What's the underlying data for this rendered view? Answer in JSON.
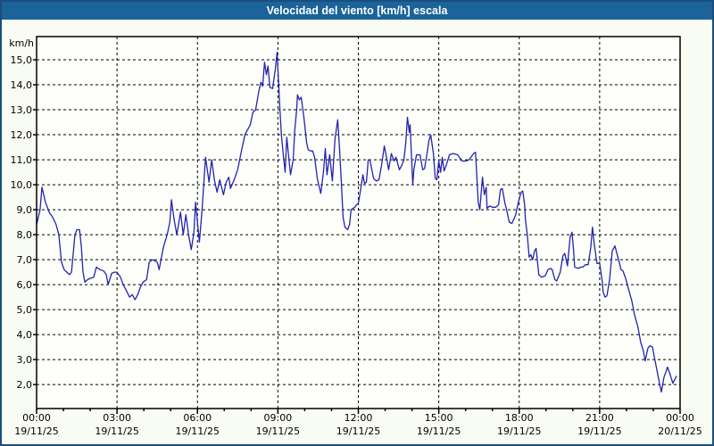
{
  "window": {
    "title": "Velocidad del viento [km/h] escala"
  },
  "colors": {
    "titlebar_bg": "#1B6398",
    "frame_border": "#1A4E7E",
    "page_bg": "#F9FCF3",
    "plot_bg": "#FEFFFA",
    "line": "#2323AF",
    "grid": "#000000",
    "text": "#000000"
  },
  "chart_data": {
    "type": "line",
    "title": "Velocidad del viento [km/h] escala",
    "xlabel": "",
    "ylabel": "km/h",
    "ylim": [
      1.04,
      15.93
    ],
    "xlim_hours": [
      0,
      24
    ],
    "grid": "dashed",
    "legend": "none",
    "yticks": [
      {
        "v": 2,
        "label": "2,0"
      },
      {
        "v": 3,
        "label": "3,0"
      },
      {
        "v": 4,
        "label": "4,0"
      },
      {
        "v": 5,
        "label": "5,0"
      },
      {
        "v": 6,
        "label": "6,0"
      },
      {
        "v": 7,
        "label": "7,0"
      },
      {
        "v": 8,
        "label": "8,0"
      },
      {
        "v": 9,
        "label": "9,0"
      },
      {
        "v": 10,
        "label": "10,0"
      },
      {
        "v": 11,
        "label": "11,0"
      },
      {
        "v": 12,
        "label": "12,0"
      },
      {
        "v": 13,
        "label": "13,0"
      },
      {
        "v": 14,
        "label": "14,0"
      },
      {
        "v": 15,
        "label": "15,0"
      }
    ],
    "xticks": [
      {
        "h": 0,
        "time": "00:00",
        "date": "19/11/25"
      },
      {
        "h": 3,
        "time": "03:00",
        "date": "19/11/25"
      },
      {
        "h": 6,
        "time": "06:00",
        "date": "19/11/25"
      },
      {
        "h": 9,
        "time": "09:00",
        "date": "19/11/25"
      },
      {
        "h": 12,
        "time": "12:00",
        "date": "19/11/25"
      },
      {
        "h": 15,
        "time": "15:00",
        "date": "19/11/25"
      },
      {
        "h": 18,
        "time": "18:00",
        "date": "19/11/25"
      },
      {
        "h": 21,
        "time": "21:00",
        "date": "19/11/25"
      },
      {
        "h": 24,
        "time": "00:00",
        "date": "20/11/25"
      }
    ],
    "minor_xtick_every_hours": 1,
    "series": [
      {
        "name": "Velocidad del viento",
        "color": "#2323AF",
        "points": [
          [
            0.0,
            8.4
          ],
          [
            0.13,
            9.0
          ],
          [
            0.2,
            9.9
          ],
          [
            0.33,
            9.3
          ],
          [
            0.47,
            8.9
          ],
          [
            0.6,
            8.7
          ],
          [
            0.73,
            8.4
          ],
          [
            0.83,
            8.0
          ],
          [
            0.93,
            6.9
          ],
          [
            1.03,
            6.6
          ],
          [
            1.13,
            6.5
          ],
          [
            1.23,
            6.4
          ],
          [
            1.3,
            6.5
          ],
          [
            1.37,
            7.3
          ],
          [
            1.43,
            8.0
          ],
          [
            1.5,
            8.2
          ],
          [
            1.6,
            8.2
          ],
          [
            1.67,
            7.5
          ],
          [
            1.73,
            6.5
          ],
          [
            1.8,
            6.1
          ],
          [
            1.9,
            6.2
          ],
          [
            2.0,
            6.25
          ],
          [
            2.13,
            6.3
          ],
          [
            2.23,
            6.7
          ],
          [
            2.37,
            6.6
          ],
          [
            2.5,
            6.55
          ],
          [
            2.6,
            6.4
          ],
          [
            2.67,
            6.0
          ],
          [
            2.8,
            6.45
          ],
          [
            2.9,
            6.5
          ],
          [
            3.0,
            6.5
          ],
          [
            3.13,
            6.3
          ],
          [
            3.23,
            6.0
          ],
          [
            3.33,
            5.8
          ],
          [
            3.47,
            5.5
          ],
          [
            3.57,
            5.6
          ],
          [
            3.67,
            5.4
          ],
          [
            3.77,
            5.6
          ],
          [
            3.87,
            5.9
          ],
          [
            3.97,
            6.1
          ],
          [
            4.1,
            6.2
          ],
          [
            4.2,
            6.9
          ],
          [
            4.33,
            7.0
          ],
          [
            4.5,
            6.9
          ],
          [
            4.57,
            6.6
          ],
          [
            4.73,
            7.5
          ],
          [
            4.87,
            8.0
          ],
          [
            4.97,
            8.5
          ],
          [
            5.03,
            9.4
          ],
          [
            5.13,
            8.6
          ],
          [
            5.23,
            8.0
          ],
          [
            5.37,
            8.9
          ],
          [
            5.47,
            8.0
          ],
          [
            5.57,
            8.8
          ],
          [
            5.67,
            8.0
          ],
          [
            5.77,
            7.4
          ],
          [
            5.87,
            8.1
          ],
          [
            5.93,
            9.3
          ],
          [
            6.07,
            7.7
          ],
          [
            6.17,
            9.0
          ],
          [
            6.3,
            11.1
          ],
          [
            6.43,
            10.1
          ],
          [
            6.53,
            11.0
          ],
          [
            6.63,
            10.2
          ],
          [
            6.73,
            9.7
          ],
          [
            6.83,
            10.2
          ],
          [
            6.97,
            9.6
          ],
          [
            7.07,
            10.1
          ],
          [
            7.17,
            10.3
          ],
          [
            7.23,
            9.85
          ],
          [
            7.37,
            10.2
          ],
          [
            7.5,
            10.6
          ],
          [
            7.63,
            11.3
          ],
          [
            7.77,
            12.0
          ],
          [
            7.97,
            12.4
          ],
          [
            8.07,
            12.9
          ],
          [
            8.17,
            13.0
          ],
          [
            8.3,
            13.8
          ],
          [
            8.37,
            14.1
          ],
          [
            8.43,
            13.95
          ],
          [
            8.5,
            14.9
          ],
          [
            8.57,
            14.4
          ],
          [
            8.63,
            14.75
          ],
          [
            8.7,
            13.9
          ],
          [
            8.8,
            13.85
          ],
          [
            8.9,
            14.6
          ],
          [
            8.97,
            15.3
          ],
          [
            9.07,
            13.1
          ],
          [
            9.13,
            12.0
          ],
          [
            9.2,
            11.2
          ],
          [
            9.27,
            10.5
          ],
          [
            9.33,
            11.9
          ],
          [
            9.47,
            10.4
          ],
          [
            9.57,
            11.0
          ],
          [
            9.63,
            12.2
          ],
          [
            9.7,
            13.0
          ],
          [
            9.73,
            13.6
          ],
          [
            9.8,
            13.4
          ],
          [
            9.87,
            13.5
          ],
          [
            9.97,
            12.7
          ],
          [
            10.07,
            11.7
          ],
          [
            10.13,
            11.4
          ],
          [
            10.23,
            11.35
          ],
          [
            10.3,
            11.35
          ],
          [
            10.37,
            11.1
          ],
          [
            10.47,
            10.25
          ],
          [
            10.6,
            9.65
          ],
          [
            10.7,
            10.5
          ],
          [
            10.77,
            11.45
          ],
          [
            10.83,
            10.4
          ],
          [
            10.93,
            11.2
          ],
          [
            11.03,
            10.15
          ],
          [
            11.13,
            11.85
          ],
          [
            11.23,
            12.6
          ],
          [
            11.3,
            11.4
          ],
          [
            11.37,
            10.0
          ],
          [
            11.43,
            8.7
          ],
          [
            11.5,
            8.3
          ],
          [
            11.6,
            8.2
          ],
          [
            11.67,
            8.4
          ],
          [
            11.73,
            9.0
          ],
          [
            11.87,
            9.1
          ],
          [
            11.93,
            9.2
          ],
          [
            12.0,
            9.25
          ],
          [
            12.1,
            9.9
          ],
          [
            12.17,
            10.4
          ],
          [
            12.23,
            10.05
          ],
          [
            12.3,
            10.1
          ],
          [
            12.37,
            11.0
          ],
          [
            12.43,
            11.0
          ],
          [
            12.57,
            10.25
          ],
          [
            12.67,
            10.15
          ],
          [
            12.77,
            10.2
          ],
          [
            12.87,
            10.8
          ],
          [
            12.97,
            11.55
          ],
          [
            13.07,
            11.0
          ],
          [
            13.13,
            10.6
          ],
          [
            13.23,
            11.25
          ],
          [
            13.33,
            10.95
          ],
          [
            13.4,
            11.1
          ],
          [
            13.53,
            10.6
          ],
          [
            13.63,
            10.8
          ],
          [
            13.7,
            11.0
          ],
          [
            13.77,
            11.7
          ],
          [
            13.83,
            12.7
          ],
          [
            13.9,
            12.1
          ],
          [
            13.93,
            12.4
          ],
          [
            14.0,
            10.7
          ],
          [
            14.03,
            10.0
          ],
          [
            14.07,
            10.6
          ],
          [
            14.17,
            11.2
          ],
          [
            14.3,
            11.2
          ],
          [
            14.4,
            10.6
          ],
          [
            14.47,
            10.65
          ],
          [
            14.57,
            11.3
          ],
          [
            14.63,
            11.75
          ],
          [
            14.7,
            12.0
          ],
          [
            14.8,
            11.25
          ],
          [
            14.87,
            10.25
          ],
          [
            14.93,
            10.2
          ],
          [
            15.0,
            10.95
          ],
          [
            15.07,
            10.5
          ],
          [
            15.13,
            11.1
          ],
          [
            15.2,
            10.55
          ],
          [
            15.3,
            10.85
          ],
          [
            15.4,
            11.2
          ],
          [
            15.53,
            11.25
          ],
          [
            15.7,
            11.2
          ],
          [
            15.8,
            11.05
          ],
          [
            15.87,
            10.95
          ],
          [
            16.0,
            10.95
          ],
          [
            16.13,
            11.0
          ],
          [
            16.23,
            11.15
          ],
          [
            16.3,
            11.25
          ],
          [
            16.37,
            11.3
          ],
          [
            16.4,
            10.7
          ],
          [
            16.47,
            9.3
          ],
          [
            16.53,
            9.0
          ],
          [
            16.63,
            10.3
          ],
          [
            16.7,
            9.6
          ],
          [
            16.77,
            9.9
          ],
          [
            16.8,
            9.05
          ],
          [
            16.9,
            9.15
          ],
          [
            17.0,
            9.1
          ],
          [
            17.13,
            9.1
          ],
          [
            17.23,
            9.2
          ],
          [
            17.3,
            9.8
          ],
          [
            17.37,
            9.85
          ],
          [
            17.47,
            9.25
          ],
          [
            17.53,
            9.0
          ],
          [
            17.63,
            8.5
          ],
          [
            17.73,
            8.45
          ],
          [
            17.87,
            8.8
          ],
          [
            17.97,
            9.3
          ],
          [
            18.07,
            9.7
          ],
          [
            18.13,
            9.75
          ],
          [
            18.2,
            9.2
          ],
          [
            18.23,
            8.6
          ],
          [
            18.3,
            8.0
          ],
          [
            18.37,
            7.1
          ],
          [
            18.43,
            7.2
          ],
          [
            18.5,
            7.0
          ],
          [
            18.57,
            7.35
          ],
          [
            18.63,
            7.45
          ],
          [
            18.73,
            6.4
          ],
          [
            18.83,
            6.3
          ],
          [
            18.97,
            6.35
          ],
          [
            19.07,
            6.6
          ],
          [
            19.17,
            6.65
          ],
          [
            19.23,
            6.6
          ],
          [
            19.33,
            6.2
          ],
          [
            19.4,
            6.15
          ],
          [
            19.53,
            6.5
          ],
          [
            19.63,
            7.15
          ],
          [
            19.7,
            7.25
          ],
          [
            19.8,
            6.75
          ],
          [
            19.9,
            7.9
          ],
          [
            19.97,
            8.1
          ],
          [
            20.03,
            7.35
          ],
          [
            20.07,
            6.7
          ],
          [
            20.2,
            6.65
          ],
          [
            20.3,
            6.7
          ],
          [
            20.37,
            6.7
          ],
          [
            20.47,
            6.8
          ],
          [
            20.57,
            6.8
          ],
          [
            20.67,
            7.5
          ],
          [
            20.73,
            8.3
          ],
          [
            20.8,
            7.6
          ],
          [
            20.9,
            6.85
          ],
          [
            21.0,
            6.85
          ],
          [
            21.1,
            6.1
          ],
          [
            21.13,
            5.7
          ],
          [
            21.2,
            5.5
          ],
          [
            21.27,
            5.55
          ],
          [
            21.37,
            6.2
          ],
          [
            21.47,
            7.35
          ],
          [
            21.57,
            7.55
          ],
          [
            21.63,
            7.3
          ],
          [
            21.73,
            6.9
          ],
          [
            21.8,
            6.6
          ],
          [
            21.87,
            6.55
          ],
          [
            21.97,
            6.25
          ],
          [
            22.07,
            5.85
          ],
          [
            22.2,
            5.35
          ],
          [
            22.3,
            4.8
          ],
          [
            22.43,
            4.3
          ],
          [
            22.53,
            3.7
          ],
          [
            22.63,
            3.35
          ],
          [
            22.7,
            2.95
          ],
          [
            22.8,
            3.45
          ],
          [
            22.87,
            3.55
          ],
          [
            22.97,
            3.5
          ],
          [
            23.03,
            3.15
          ],
          [
            23.13,
            2.6
          ],
          [
            23.23,
            2.05
          ],
          [
            23.3,
            1.7
          ],
          [
            23.4,
            2.3
          ],
          [
            23.47,
            2.5
          ],
          [
            23.53,
            2.7
          ],
          [
            23.63,
            2.4
          ],
          [
            23.73,
            2.05
          ],
          [
            23.8,
            2.2
          ],
          [
            23.87,
            2.35
          ]
        ]
      }
    ]
  }
}
